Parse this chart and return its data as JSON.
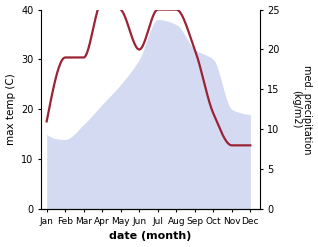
{
  "months": [
    "Jan",
    "Feb",
    "Mar",
    "Apr",
    "May",
    "Jun",
    "Jul",
    "Aug",
    "Sep",
    "Oct",
    "Nov",
    "Dec"
  ],
  "month_positions": [
    0,
    1,
    2,
    3,
    4,
    5,
    6,
    7,
    8,
    9,
    10,
    11
  ],
  "max_temp": [
    15.0,
    14.0,
    17.0,
    21.0,
    25.0,
    30.0,
    38.0,
    37.0,
    32.0,
    30.0,
    20.0,
    19.0
  ],
  "precipitation": [
    11.0,
    19.0,
    19.0,
    26.0,
    25.0,
    20.0,
    25.0,
    25.0,
    20.0,
    12.0,
    8.0,
    8.0
  ],
  "temp_ylim": [
    0,
    40
  ],
  "precip_ylim": [
    0,
    25
  ],
  "temp_yticks": [
    0,
    10,
    20,
    30,
    40
  ],
  "precip_yticks": [
    0,
    5,
    10,
    15,
    20,
    25
  ],
  "xlabel": "date (month)",
  "ylabel_left": "max temp (C)",
  "ylabel_right": "med. precipitation\n(kg/m2)",
  "fill_color": "#b0bce8",
  "fill_alpha": 0.55,
  "line_color": "#9b2335",
  "line_width": 1.6,
  "background_color": "#ffffff"
}
